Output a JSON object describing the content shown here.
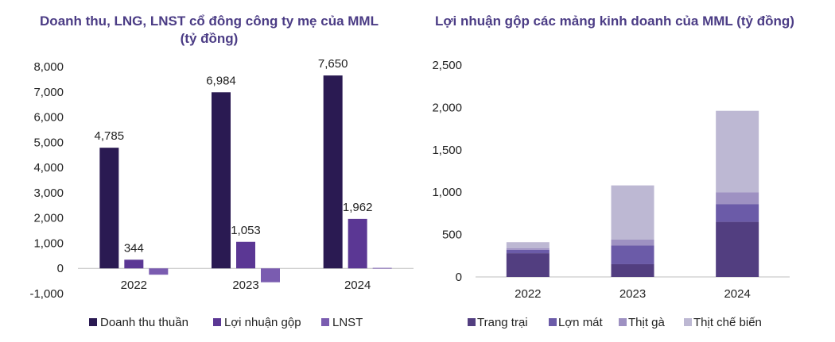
{
  "chart_data": [
    {
      "type": "bar",
      "title_line1": "Doanh thu, LNG, LNST cổ đông công ty mẹ của MML",
      "title_line2": "(tỷ đồng)",
      "categories": [
        "2022",
        "2023",
        "2024"
      ],
      "series": [
        {
          "name": "Doanh thu thuần",
          "values": [
            4785,
            6984,
            7650
          ],
          "color": "#2A1A52",
          "labels": [
            "4,785",
            "6,984",
            "7,650"
          ]
        },
        {
          "name": "Lợi nhuận gộp",
          "values": [
            344,
            1053,
            1962
          ],
          "color": "#5B3794",
          "labels": [
            "344",
            "1,053",
            "1,962"
          ]
        },
        {
          "name": "LNST",
          "values": [
            -250,
            -550,
            20
          ],
          "color": "#7A5CB0",
          "labels": []
        }
      ],
      "ylim": [
        -1000,
        8000
      ],
      "yticks": [
        8000,
        7000,
        6000,
        5000,
        4000,
        3000,
        2000,
        1000,
        0,
        -1000
      ],
      "ytick_labels": [
        "8,000",
        "7,000",
        "6,000",
        "5,000",
        "4,000",
        "3,000",
        "2,000",
        "1,000",
        "0",
        "-1,000"
      ],
      "legend_position": "bottom"
    },
    {
      "type": "bar",
      "stacked": true,
      "title": "Lợi nhuận gộp các mảng kinh doanh của MML (tỷ đồng)",
      "categories": [
        "2022",
        "2023",
        "2024"
      ],
      "series": [
        {
          "name": "Trang trại",
          "values": [
            280,
            150,
            650
          ],
          "color": "#523E80"
        },
        {
          "name": "Lợn mát",
          "values": [
            40,
            220,
            210
          ],
          "color": "#6B5BA8"
        },
        {
          "name": "Thịt gà",
          "values": [
            20,
            70,
            140
          ],
          "color": "#9E91C2"
        },
        {
          "name": "Thịt chế biến",
          "values": [
            70,
            640,
            960
          ],
          "color": "#BDB8D3"
        }
      ],
      "ylim": [
        0,
        2500
      ],
      "yticks": [
        2500,
        2000,
        1500,
        1000,
        500,
        0
      ],
      "ytick_labels": [
        "2,500",
        "2,000",
        "1,500",
        "1,000",
        "500",
        "0"
      ],
      "legend_position": "bottom"
    }
  ]
}
